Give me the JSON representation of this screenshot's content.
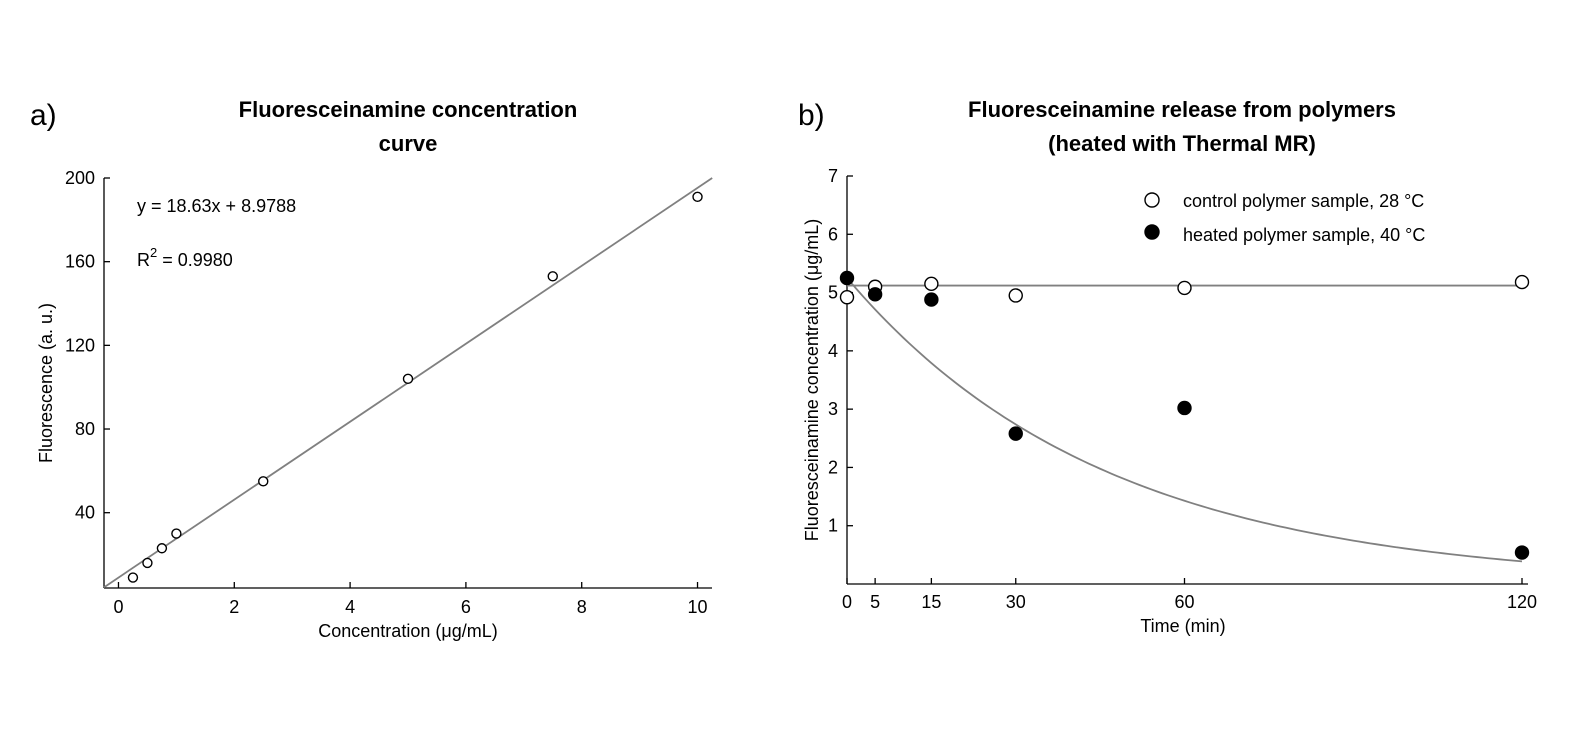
{
  "chart_data": [
    {
      "type": "scatter",
      "panel_label": "a)",
      "title_lines": [
        "Fluoresceinamine concentration",
        "curve"
      ],
      "xlabel": "Concentration (μg/mL)",
      "ylabel": "Fluorescence (a. u.)",
      "xlim": [
        -0.25,
        10.25
      ],
      "ylim": [
        4,
        200
      ],
      "xticks": [
        0,
        2,
        4,
        6,
        8,
        10
      ],
      "yticks": [
        40,
        80,
        120,
        160,
        200
      ],
      "series": [
        {
          "name": "standards",
          "marker": "open",
          "x": [
            0.25,
            0.5,
            0.75,
            1.0,
            2.5,
            5.0,
            7.5,
            10.0
          ],
          "y": [
            9,
            16,
            23,
            30,
            55,
            104,
            153,
            191
          ]
        }
      ],
      "fit": {
        "kind": "linear",
        "slope": 18.63,
        "intercept": 8.9788
      },
      "annotations": {
        "equation": "y = 18.63x + 8.9788",
        "r2_prefix": "R",
        "r2_sup": "2",
        "r2_value": " = 0.9980"
      }
    },
    {
      "type": "scatter",
      "panel_label": "b)",
      "title_lines": [
        "Fluoresceinamine release from polymers",
        "(heated with Thermal MR)"
      ],
      "xlabel": "Time (min)",
      "ylabel": "Fluoresceinamine concentration (μg/mL)",
      "xlim": [
        0,
        120
      ],
      "ylim": [
        0,
        7
      ],
      "xticks": [
        0,
        5,
        15,
        30,
        60,
        120
      ],
      "yticks": [
        1,
        2,
        3,
        4,
        5,
        6,
        7
      ],
      "series": [
        {
          "name": "control polymer sample, 28 °C",
          "marker": "open",
          "x": [
            0,
            5,
            15,
            30,
            60,
            120
          ],
          "y": [
            4.92,
            5.1,
            5.15,
            4.95,
            5.08,
            5.18
          ]
        },
        {
          "name": "heated polymer sample, 40 °C",
          "marker": "filled",
          "x": [
            0,
            5,
            15,
            30,
            60,
            120
          ],
          "y": [
            5.25,
            4.97,
            4.88,
            2.58,
            3.02,
            0.54
          ]
        }
      ],
      "fits": [
        {
          "kind": "constant",
          "value": 5.12
        },
        {
          "kind": "exponential",
          "a": 5.25,
          "k": 0.0217
        }
      ]
    }
  ]
}
